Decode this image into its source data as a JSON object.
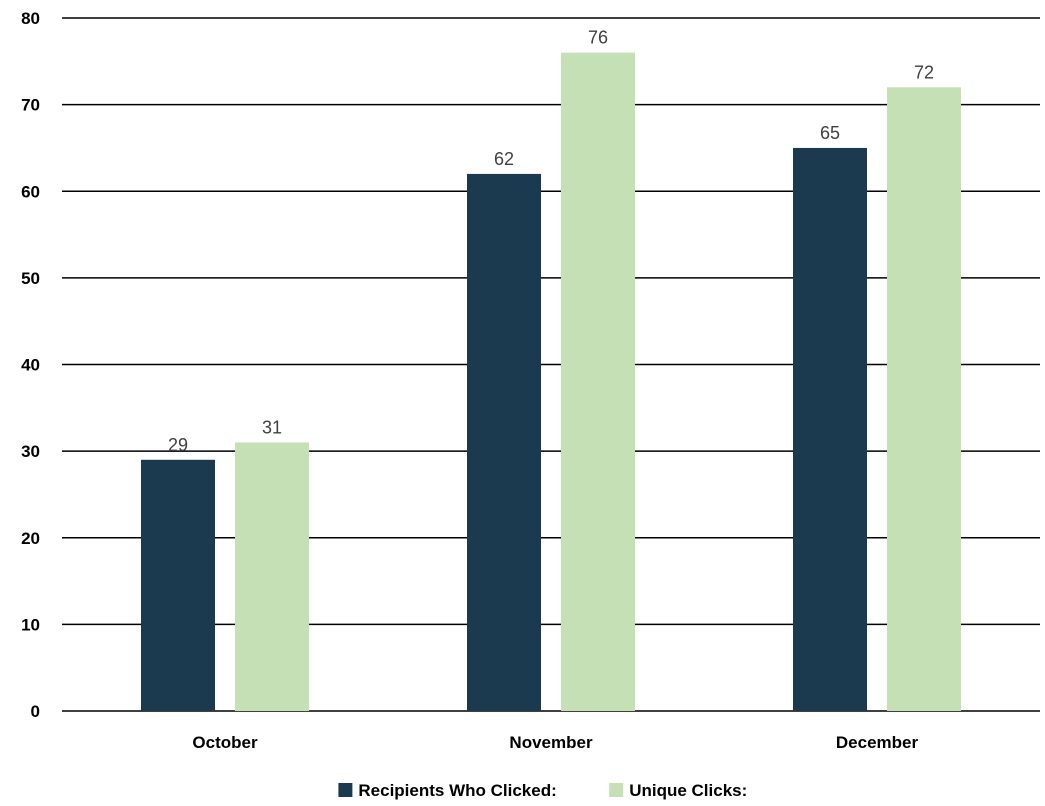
{
  "chart_data": {
    "type": "bar",
    "title": "",
    "xlabel": "",
    "ylabel": "",
    "categories": [
      "October",
      "November",
      "December"
    ],
    "series": [
      {
        "name": "Recipients Who Clicked:",
        "values": [
          29,
          62,
          65
        ],
        "color": "#1b3a50"
      },
      {
        "name": "Unique Clicks:",
        "values": [
          31,
          76,
          72
        ],
        "color": "#c5e0b4"
      }
    ],
    "ylim": [
      0,
      80
    ],
    "yticks": [
      0,
      10,
      20,
      30,
      40,
      50,
      60,
      70,
      80
    ],
    "grid": true,
    "legend": "bottom-center",
    "data_labels": true
  }
}
